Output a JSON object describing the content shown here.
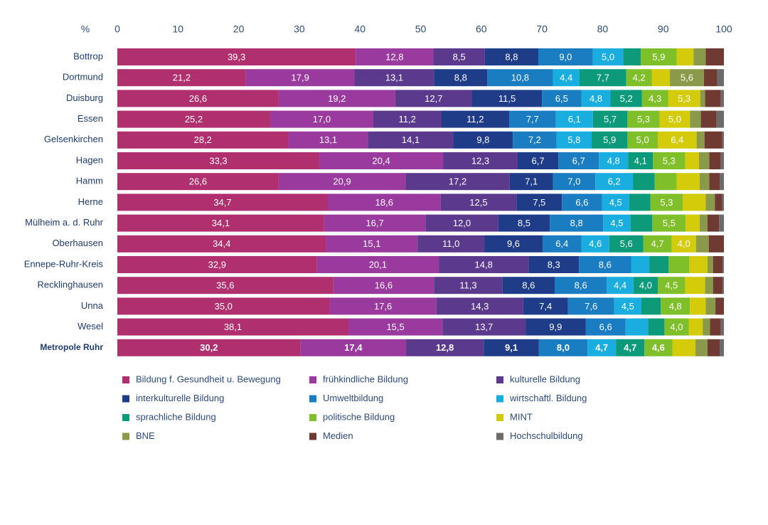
{
  "chart_data": {
    "type": "stacked-bar-horizontal",
    "x_label": "%",
    "xlim": [
      0,
      100
    ],
    "xticks": [
      0,
      10,
      20,
      30,
      40,
      50,
      60,
      70,
      80,
      90,
      100
    ],
    "categories": [
      "Bottrop",
      "Dortmund",
      "Duisburg",
      "Essen",
      "Gelsenkirchen",
      "Hagen",
      "Hamm",
      "Herne",
      "Mülheim a. d. Ruhr",
      "Oberhausen",
      "Ennepe-Ruhr-Kreis",
      "Recklinghausen",
      "Unna",
      "Wesel",
      "Metropole Ruhr"
    ],
    "series": [
      {
        "name": "Bildung f. Gesundheit u. Bewegung",
        "color": "#b0306f",
        "values": [
          39.3,
          21.2,
          26.6,
          25.2,
          28.2,
          33.3,
          26.6,
          34.7,
          34.1,
          34.4,
          32.9,
          35.6,
          35.0,
          38.1,
          30.2
        ],
        "value_labels": [
          "39,3",
          "21,2",
          "26,6",
          "25,2",
          "28,2",
          "33,3",
          "26,6",
          "34,7",
          "34,1",
          "34,4",
          "32,9",
          "35,6",
          "35,0",
          "38,1",
          "30,2"
        ]
      },
      {
        "name": "frühkindliche Bildung",
        "color": "#9a3a9e",
        "values": [
          12.8,
          17.9,
          19.2,
          17.0,
          13.1,
          20.4,
          20.9,
          18.6,
          16.7,
          15.1,
          20.1,
          16.6,
          17.6,
          15.5,
          17.4
        ],
        "value_labels": [
          "12,8",
          "17,9",
          "19,2",
          "17,0",
          "13,1",
          "20,4",
          "20,9",
          "18,6",
          "16,7",
          "15,1",
          "20,1",
          "16,6",
          "17,6",
          "15,5",
          "17,4"
        ]
      },
      {
        "name": "kulturelle Bildung",
        "color": "#5b3a8e",
        "values": [
          8.5,
          13.1,
          12.7,
          11.2,
          14.1,
          12.3,
          17.2,
          12.5,
          12.0,
          11.0,
          14.8,
          11.3,
          14.3,
          13.7,
          12.8
        ],
        "value_labels": [
          "8,5",
          "13,1",
          "12,7",
          "11,2",
          "14,1",
          "12,3",
          "17,2",
          "12,5",
          "12,0",
          "11,0",
          "14,8",
          "11,3",
          "14,3",
          "13,7",
          "12,8"
        ]
      },
      {
        "name": "interkulturelle Bildung",
        "color": "#1f3c88",
        "values": [
          8.8,
          8.8,
          11.5,
          11.2,
          9.8,
          6.7,
          7.1,
          7.5,
          8.5,
          9.6,
          8.3,
          8.6,
          7.4,
          9.9,
          9.1
        ],
        "value_labels": [
          "8,8",
          "8,8",
          "11,5",
          "11,2",
          "9,8",
          "6,7",
          "7,1",
          "7,5",
          "8,5",
          "9,6",
          "8,3",
          "8,6",
          "7,4",
          "9,9",
          "9,1"
        ]
      },
      {
        "name": "Umweltbildung",
        "color": "#1a7cc1",
        "values": [
          9.0,
          10.8,
          6.5,
          7.7,
          7.2,
          6.7,
          7.0,
          6.6,
          8.8,
          6.4,
          8.6,
          8.6,
          7.6,
          6.6,
          8.0
        ],
        "value_labels": [
          "9,0",
          "10,8",
          "6,5",
          "7,7",
          "7,2",
          "6,7",
          "7,0",
          "6,6",
          "8,8",
          "6,4",
          "8,6",
          "8,6",
          "7,6",
          "6,6",
          "8,0"
        ]
      },
      {
        "name": "wirtschaftl. Bildung",
        "color": "#1aaee0",
        "values": [
          5.0,
          4.4,
          4.8,
          6.1,
          5.8,
          4.8,
          6.2,
          4.5,
          4.5,
          4.6,
          3.0,
          4.4,
          4.5,
          3.7,
          4.7
        ],
        "value_labels": [
          "5,0",
          "4,4",
          "4,8",
          "6,1",
          "5,8",
          "4,8",
          "6,2",
          "4,5",
          "4,5",
          "4,6",
          null,
          "4,4",
          "4,5",
          null,
          "4,7"
        ]
      },
      {
        "name": "sprachliche Bildung",
        "color": "#0d9a7a",
        "values": [
          2.9,
          7.7,
          5.2,
          5.7,
          5.9,
          4.1,
          3.6,
          3.5,
          3.6,
          5.6,
          3.2,
          4.0,
          3.2,
          2.7,
          4.7
        ],
        "value_labels": [
          null,
          "7,7",
          "5,2",
          "5,7",
          "5,9",
          "4,1",
          null,
          null,
          null,
          "5,6",
          null,
          "4,0",
          null,
          null,
          "4,7"
        ]
      },
      {
        "name": "politische Bildung",
        "color": "#7fbf2a",
        "values": [
          5.9,
          4.2,
          4.3,
          5.3,
          5.0,
          5.3,
          3.6,
          5.3,
          5.5,
          4.7,
          3.4,
          4.5,
          4.8,
          4.0,
          4.6
        ],
        "value_labels": [
          "5,9",
          "4,2",
          "4,3",
          "5,3",
          "5,0",
          "5,3",
          null,
          "5,3",
          "5,5",
          "4,7",
          null,
          "4,5",
          "4,8",
          "4,0",
          "4,6"
        ]
      },
      {
        "name": "MINT",
        "color": "#d4cc0a",
        "values": [
          2.8,
          3.0,
          5.3,
          5.0,
          6.4,
          2.3,
          3.8,
          3.8,
          2.3,
          4.0,
          3.0,
          3.3,
          2.6,
          2.3,
          3.8
        ],
        "value_labels": [
          null,
          null,
          "5,3",
          "5,0",
          "6,4",
          null,
          null,
          null,
          null,
          "4,0",
          null,
          null,
          null,
          null,
          null
        ]
      },
      {
        "name": "BNE",
        "color": "#8a9a4a",
        "values": [
          2.0,
          5.6,
          0.8,
          1.8,
          1.3,
          1.7,
          1.6,
          1.5,
          1.3,
          2.1,
          0.9,
          1.3,
          1.6,
          1.2,
          2.0
        ],
        "value_labels": [
          null,
          "5,6",
          null,
          null,
          null,
          null,
          null,
          null,
          null,
          null,
          null,
          null,
          null,
          null,
          null
        ]
      },
      {
        "name": "Medien",
        "color": "#6e3a32",
        "values": [
          3.0,
          2.2,
          2.6,
          2.6,
          2.9,
          1.9,
          1.7,
          1.2,
          1.9,
          2.5,
          1.6,
          1.6,
          1.4,
          1.8,
          2.0
        ]
      },
      {
        "name": "Hochschulbildung",
        "color": "#6b6b6b",
        "values": [
          0,
          1.1,
          0.5,
          1.2,
          0.3,
          0.5,
          0.7,
          0.3,
          0.8,
          0,
          0.2,
          0.2,
          0,
          0.5,
          0.7
        ]
      }
    ]
  }
}
